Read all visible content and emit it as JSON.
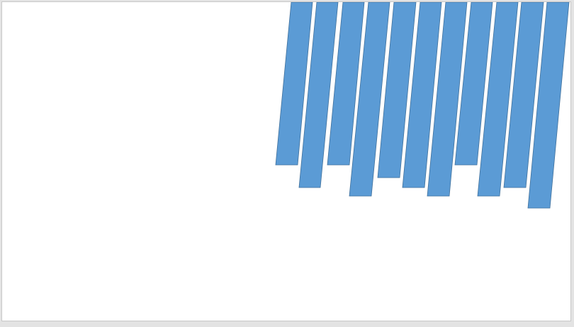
{
  "slide": {
    "shape_fill": "#5b9bd5",
    "shape_stroke": "#41719c",
    "shape_count": 11
  }
}
